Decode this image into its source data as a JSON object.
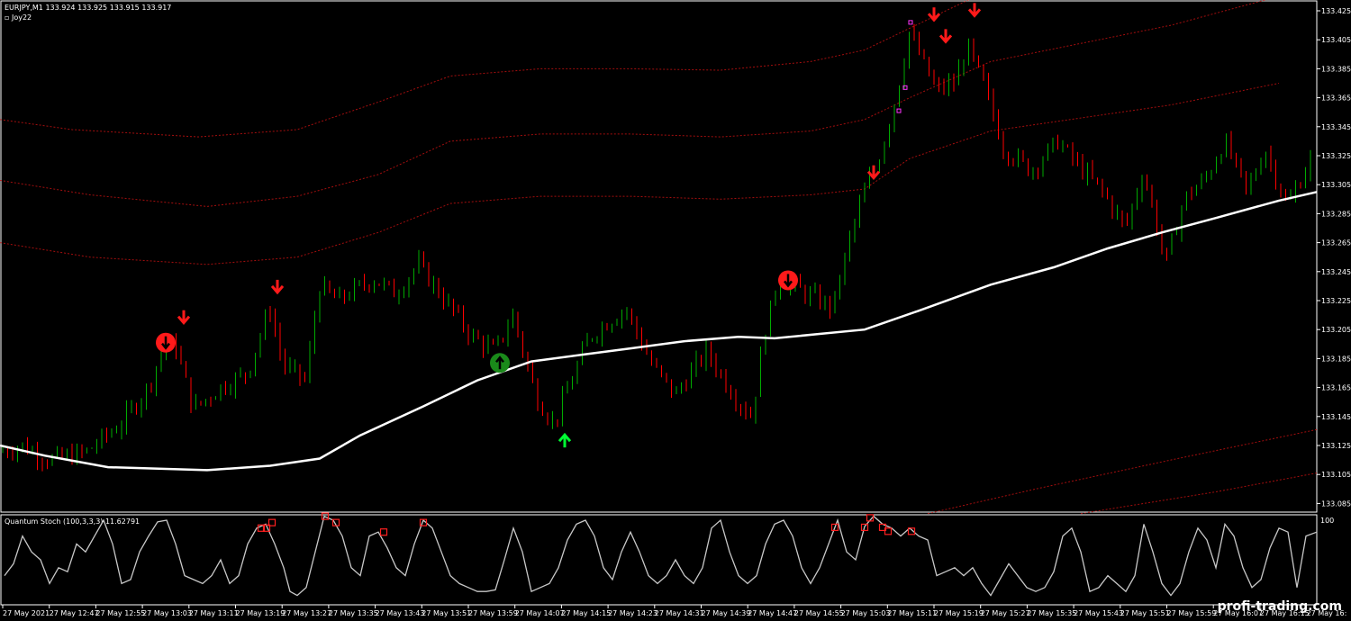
{
  "header": {
    "symbol_info": "EURJPY,M1  133.924 133.925 133.915 133.917",
    "indicator_name": "▫ Joy22"
  },
  "sub_window": {
    "title": "Quantum Stoch (100,3,3,3) 11.62791",
    "scale_top": "100"
  },
  "watermark": "profi-trading.com",
  "colors": {
    "background": "#000000",
    "bull_candle": "#00aa00",
    "bear_candle": "#ff0000",
    "ma_line": "#ffffff",
    "band_line": "#cc1111",
    "sell_arrow": "#ff1a1a",
    "buy_arrow": "#00ff33",
    "stoch_line": "#c8c8c8",
    "stoch_marker": "#ff2020",
    "frame": "#ffffff"
  },
  "chart_data": {
    "type": "candlestick",
    "symbol": "EURJPY",
    "timeframe": "M1",
    "ylim": [
      133.075,
      133.435
    ],
    "y_ticks": [
      "133.425",
      "133.405",
      "133.385",
      "133.365",
      "133.345",
      "133.325",
      "133.305",
      "133.285",
      "133.265",
      "133.245",
      "133.225",
      "133.205",
      "133.185",
      "133.165",
      "133.145",
      "133.125",
      "133.105",
      "133.085"
    ],
    "x_ticks": [
      "27 May 2021",
      "27 May 12:47",
      "27 May 12:55",
      "27 May 13:03",
      "27 May 13:11",
      "27 May 13:19",
      "27 May 13:27",
      "27 May 13:35",
      "27 May 13:43",
      "27 May 13:51",
      "27 May 13:59",
      "27 May 14:07",
      "27 May 14:15",
      "27 May 14:23",
      "27 May 14:31",
      "27 May 14:39",
      "27 May 14:47",
      "27 May 14:55",
      "27 May 15:03",
      "27 May 15:11",
      "27 May 15:19",
      "27 May 15:27",
      "27 May 15:35",
      "27 May 15:43",
      "27 May 15:51",
      "27 May 15:59",
      "27 May 16:07",
      "27 May 16:15",
      "27 May 16:"
    ],
    "price_path": [
      [
        0,
        133.12
      ],
      [
        30,
        133.125
      ],
      [
        60,
        133.115
      ],
      [
        100,
        133.12
      ],
      [
        140,
        133.14
      ],
      [
        170,
        133.165
      ],
      [
        185,
        133.19
      ],
      [
        200,
        133.195
      ],
      [
        220,
        133.15
      ],
      [
        250,
        133.165
      ],
      [
        280,
        133.175
      ],
      [
        305,
        133.22
      ],
      [
        320,
        133.18
      ],
      [
        345,
        133.17
      ],
      [
        360,
        133.235
      ],
      [
        380,
        133.225
      ],
      [
        420,
        133.24
      ],
      [
        445,
        133.23
      ],
      [
        470,
        133.25
      ],
      [
        500,
        133.225
      ],
      [
        530,
        133.2
      ],
      [
        555,
        133.19
      ],
      [
        575,
        133.215
      ],
      [
        600,
        133.16
      ],
      [
        620,
        133.14
      ],
      [
        640,
        133.17
      ],
      [
        660,
        133.2
      ],
      [
        700,
        133.22
      ],
      [
        730,
        133.18
      ],
      [
        755,
        133.16
      ],
      [
        790,
        133.19
      ],
      [
        820,
        133.16
      ],
      [
        840,
        133.145
      ],
      [
        855,
        133.205
      ],
      [
        870,
        133.24
      ],
      [
        900,
        133.23
      ],
      [
        930,
        133.22
      ],
      [
        950,
        133.27
      ],
      [
        965,
        133.3
      ],
      [
        980,
        133.32
      ],
      [
        1000,
        133.365
      ],
      [
        1015,
        133.41
      ],
      [
        1030,
        133.39
      ],
      [
        1045,
        133.37
      ],
      [
        1065,
        133.375
      ],
      [
        1080,
        133.4
      ],
      [
        1100,
        133.37
      ],
      [
        1120,
        133.33
      ],
      [
        1150,
        133.315
      ],
      [
        1180,
        133.335
      ],
      [
        1200,
        133.32
      ],
      [
        1230,
        133.3
      ],
      [
        1255,
        133.275
      ],
      [
        1275,
        133.315
      ],
      [
        1300,
        133.25
      ],
      [
        1320,
        133.295
      ],
      [
        1345,
        133.31
      ],
      [
        1365,
        133.335
      ],
      [
        1390,
        133.3
      ],
      [
        1410,
        133.33
      ],
      [
        1435,
        133.29
      ],
      [
        1462,
        133.325
      ]
    ],
    "moving_average": [
      [
        0,
        133.125
      ],
      [
        50,
        133.118
      ],
      [
        120,
        133.11
      ],
      [
        230,
        133.108
      ],
      [
        300,
        133.111
      ],
      [
        355,
        133.116
      ],
      [
        400,
        133.132
      ],
      [
        470,
        133.152
      ],
      [
        530,
        133.17
      ],
      [
        590,
        133.183
      ],
      [
        650,
        133.188
      ],
      [
        700,
        133.192
      ],
      [
        760,
        133.197
      ],
      [
        820,
        133.2
      ],
      [
        860,
        133.199
      ],
      [
        910,
        133.202
      ],
      [
        960,
        133.205
      ],
      [
        1020,
        133.218
      ],
      [
        1100,
        133.236
      ],
      [
        1170,
        133.248
      ],
      [
        1230,
        133.261
      ],
      [
        1290,
        133.272
      ],
      [
        1350,
        133.282
      ],
      [
        1420,
        133.294
      ],
      [
        1462,
        133.3
      ]
    ],
    "bands": [
      [
        [
          0,
          133.35
        ],
        [
          80,
          133.343
        ],
        [
          220,
          133.338
        ],
        [
          330,
          133.343
        ],
        [
          420,
          133.362
        ],
        [
          500,
          133.38
        ],
        [
          600,
          133.385
        ],
        [
          700,
          133.385
        ],
        [
          800,
          133.384
        ],
        [
          900,
          133.39
        ],
        [
          960,
          133.398
        ],
        [
          1000,
          133.41
        ],
        [
          1100,
          133.44
        ]
      ],
      [
        [
          0,
          133.308
        ],
        [
          100,
          133.298
        ],
        [
          230,
          133.29
        ],
        [
          330,
          133.297
        ],
        [
          420,
          133.312
        ],
        [
          500,
          133.335
        ],
        [
          600,
          133.34
        ],
        [
          700,
          133.34
        ],
        [
          800,
          133.338
        ],
        [
          900,
          133.342
        ],
        [
          960,
          133.35
        ],
        [
          1010,
          133.365
        ],
        [
          1100,
          133.39
        ],
        [
          1300,
          133.415
        ],
        [
          1420,
          133.435
        ]
      ],
      [
        [
          0,
          133.265
        ],
        [
          100,
          133.255
        ],
        [
          230,
          133.25
        ],
        [
          330,
          133.255
        ],
        [
          420,
          133.272
        ],
        [
          500,
          133.292
        ],
        [
          600,
          133.297
        ],
        [
          700,
          133.297
        ],
        [
          800,
          133.295
        ],
        [
          900,
          133.298
        ],
        [
          960,
          133.302
        ],
        [
          1010,
          133.323
        ],
        [
          1100,
          133.342
        ],
        [
          1300,
          133.36
        ],
        [
          1420,
          133.375
        ]
      ],
      [
        [
          1030,
          133.078
        ],
        [
          1150,
          133.095
        ],
        [
          1300,
          133.115
        ],
        [
          1462,
          133.136
        ]
      ],
      [
        [
          1200,
          133.078
        ],
        [
          1350,
          133.093
        ],
        [
          1462,
          133.106
        ]
      ]
    ],
    "sell_arrows": [
      [
        204,
        133.214
      ],
      [
        308,
        133.235
      ],
      [
        970,
        133.314
      ],
      [
        1037,
        133.423
      ],
      [
        1050,
        133.408
      ],
      [
        1082,
        133.426
      ]
    ],
    "circle_sell": [
      [
        184,
        133.196
      ],
      [
        875,
        133.239
      ]
    ],
    "circle_buy": [
      [
        555,
        133.182
      ]
    ],
    "buy_arrows": [
      [
        627,
        133.128
      ]
    ],
    "magenta_markers": [
      [
        1011,
        133.417
      ],
      [
        1005,
        133.372
      ],
      [
        998,
        133.356
      ]
    ],
    "stoch_series": [
      [
        5,
        30
      ],
      [
        15,
        45
      ],
      [
        25,
        80
      ],
      [
        35,
        60
      ],
      [
        45,
        50
      ],
      [
        55,
        20
      ],
      [
        65,
        40
      ],
      [
        75,
        35
      ],
      [
        85,
        70
      ],
      [
        95,
        60
      ],
      [
        105,
        80
      ],
      [
        115,
        100
      ],
      [
        125,
        70
      ],
      [
        135,
        20
      ],
      [
        145,
        25
      ],
      [
        155,
        60
      ],
      [
        165,
        80
      ],
      [
        175,
        98
      ],
      [
        185,
        100
      ],
      [
        195,
        70
      ],
      [
        205,
        30
      ],
      [
        215,
        25
      ],
      [
        225,
        20
      ],
      [
        235,
        30
      ],
      [
        245,
        50
      ],
      [
        255,
        20
      ],
      [
        265,
        30
      ],
      [
        275,
        70
      ],
      [
        285,
        90
      ],
      [
        295,
        95
      ],
      [
        305,
        70
      ],
      [
        315,
        40
      ],
      [
        322,
        10
      ],
      [
        330,
        5
      ],
      [
        340,
        15
      ],
      [
        350,
        60
      ],
      [
        360,
        105
      ],
      [
        370,
        100
      ],
      [
        380,
        80
      ],
      [
        390,
        40
      ],
      [
        400,
        30
      ],
      [
        410,
        80
      ],
      [
        420,
        85
      ],
      [
        430,
        65
      ],
      [
        440,
        40
      ],
      [
        450,
        30
      ],
      [
        460,
        70
      ],
      [
        470,
        100
      ],
      [
        480,
        90
      ],
      [
        490,
        60
      ],
      [
        500,
        30
      ],
      [
        510,
        20
      ],
      [
        520,
        15
      ],
      [
        530,
        10
      ],
      [
        540,
        10
      ],
      [
        550,
        12
      ],
      [
        560,
        50
      ],
      [
        570,
        90
      ],
      [
        580,
        60
      ],
      [
        590,
        10
      ],
      [
        600,
        15
      ],
      [
        610,
        20
      ],
      [
        620,
        40
      ],
      [
        630,
        75
      ],
      [
        640,
        95
      ],
      [
        650,
        100
      ],
      [
        660,
        80
      ],
      [
        670,
        40
      ],
      [
        680,
        25
      ],
      [
        690,
        60
      ],
      [
        700,
        85
      ],
      [
        710,
        60
      ],
      [
        720,
        30
      ],
      [
        730,
        20
      ],
      [
        740,
        30
      ],
      [
        750,
        50
      ],
      [
        760,
        30
      ],
      [
        770,
        20
      ],
      [
        780,
        40
      ],
      [
        790,
        90
      ],
      [
        800,
        100
      ],
      [
        810,
        60
      ],
      [
        820,
        30
      ],
      [
        830,
        20
      ],
      [
        840,
        30
      ],
      [
        850,
        70
      ],
      [
        860,
        95
      ],
      [
        870,
        100
      ],
      [
        880,
        80
      ],
      [
        890,
        40
      ],
      [
        900,
        20
      ],
      [
        910,
        40
      ],
      [
        920,
        70
      ],
      [
        930,
        100
      ],
      [
        940,
        60
      ],
      [
        950,
        50
      ],
      [
        960,
        92
      ],
      [
        970,
        105
      ],
      [
        980,
        95
      ],
      [
        990,
        90
      ],
      [
        1000,
        80
      ],
      [
        1010,
        90
      ],
      [
        1020,
        80
      ],
      [
        1030,
        75
      ],
      [
        1040,
        30
      ],
      [
        1050,
        35
      ],
      [
        1060,
        40
      ],
      [
        1070,
        30
      ],
      [
        1080,
        40
      ],
      [
        1090,
        20
      ],
      [
        1100,
        5
      ],
      [
        1110,
        25
      ],
      [
        1120,
        45
      ],
      [
        1130,
        30
      ],
      [
        1140,
        15
      ],
      [
        1150,
        10
      ],
      [
        1160,
        15
      ],
      [
        1170,
        35
      ],
      [
        1180,
        80
      ],
      [
        1190,
        90
      ],
      [
        1200,
        60
      ],
      [
        1210,
        10
      ],
      [
        1220,
        15
      ],
      [
        1230,
        30
      ],
      [
        1240,
        20
      ],
      [
        1250,
        10
      ],
      [
        1260,
        30
      ],
      [
        1270,
        95
      ],
      [
        1280,
        60
      ],
      [
        1290,
        20
      ],
      [
        1300,
        5
      ],
      [
        1310,
        20
      ],
      [
        1320,
        60
      ],
      [
        1330,
        90
      ],
      [
        1340,
        75
      ],
      [
        1350,
        40
      ],
      [
        1360,
        95
      ],
      [
        1370,
        80
      ],
      [
        1380,
        40
      ],
      [
        1390,
        15
      ],
      [
        1400,
        25
      ],
      [
        1410,
        65
      ],
      [
        1420,
        90
      ],
      [
        1430,
        85
      ],
      [
        1440,
        15
      ],
      [
        1450,
        80
      ],
      [
        1462,
        85
      ]
    ],
    "stoch_markers": [
      [
        290,
        90
      ],
      [
        296,
        90
      ],
      [
        302,
        97
      ],
      [
        361,
        105
      ],
      [
        373,
        97
      ],
      [
        426,
        85
      ],
      [
        470,
        97
      ],
      [
        927,
        91
      ],
      [
        960,
        91
      ],
      [
        966,
        103
      ],
      [
        980,
        91
      ],
      [
        986,
        86
      ],
      [
        1012,
        86
      ]
    ]
  }
}
